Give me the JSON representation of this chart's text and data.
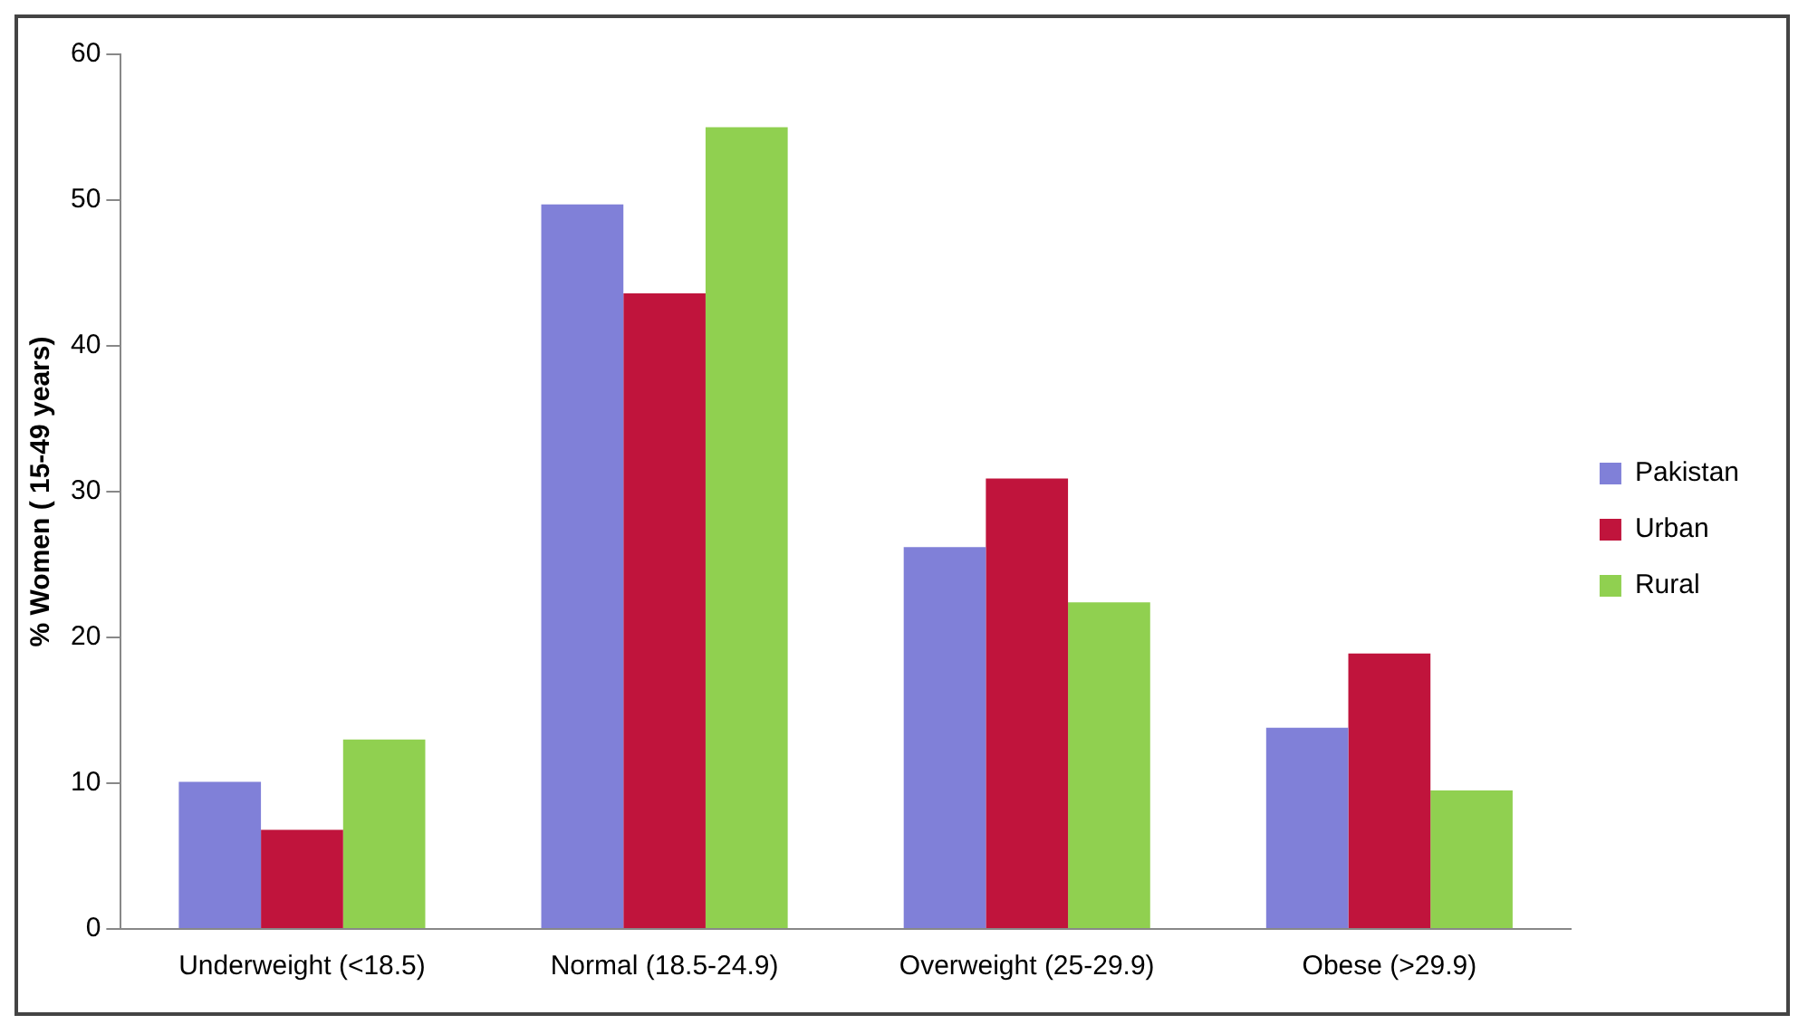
{
  "chart_data": {
    "type": "bar",
    "ylabel": "% Women ( 15-49 years)",
    "categories": [
      "Underweight (<18.5)",
      "Normal (18.5-24.9)",
      "Overweight (25-29.9)",
      "Obese (>29.9)"
    ],
    "series": [
      {
        "name": "Pakistan",
        "color": "#8080d8",
        "values": [
          10.1,
          49.7,
          26.2,
          13.8
        ]
      },
      {
        "name": "Urban",
        "color": "#c0143c",
        "values": [
          6.8,
          43.6,
          30.9,
          18.9
        ]
      },
      {
        "name": "Rural",
        "color": "#90d050",
        "values": [
          13.0,
          55.0,
          22.4,
          9.5
        ]
      }
    ],
    "ylim": [
      0,
      60
    ],
    "yticks": [
      0,
      10,
      20,
      30,
      40,
      50,
      60
    ],
    "grid": false,
    "legend": "right"
  }
}
